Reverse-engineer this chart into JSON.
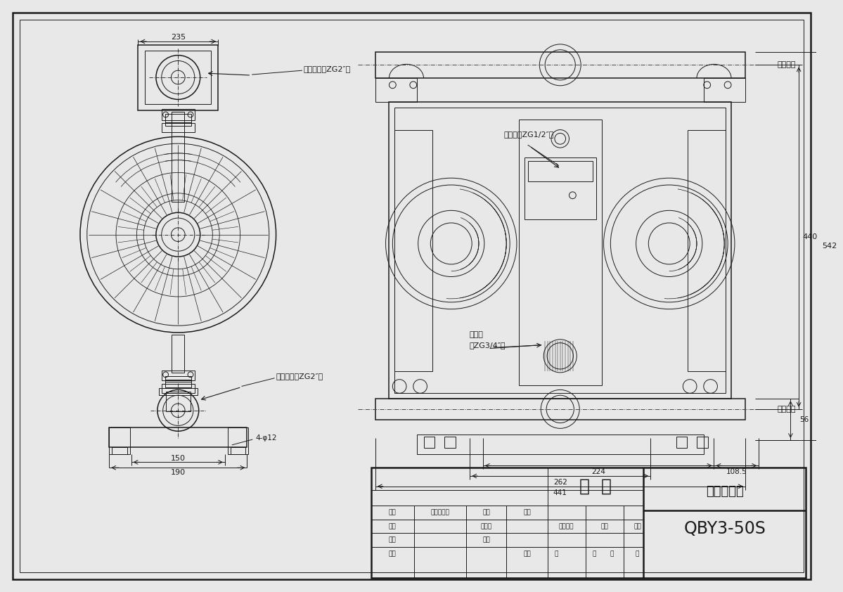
{
  "bg_color": "#e8e8e8",
  "line_color": "#1a1a1a",
  "dim_235": "235",
  "dim_150": "150",
  "dim_190": "190",
  "dim_4phi12": "4-φ12",
  "dim_440": "440",
  "dim_542": "542",
  "dim_56": "56",
  "dim_224": "224",
  "dim_262": "262",
  "dim_441": "441",
  "dim_108_5": "108.5",
  "label_outlet": "物料出口（ZG2″）",
  "label_inlet": "物料进口（ZG2″）",
  "label_air_inlet": "进气口（ZG1/2″）",
  "label_muffler1": "消声器",
  "label_muffler2": "（ZG3/4″）",
  "label_out_side": "（出口）",
  "label_in_side": "（进口）",
  "tb_material": "塑  料",
  "tb_install": "安装尺寸图",
  "tb_model": "QBY3-50S",
  "tb_biaoji": "标记",
  "tb_gengdoc": "更改文件号",
  "tb_qianzi": "鹾字",
  "tb_riqi": "日期",
  "tb_sheji": "设计",
  "tb_biaozhunhua": "标准化",
  "tb_tuyangbiaoji": "图样标记",
  "tb_zhongliang": "重量",
  "tb_bili": "比例",
  "tb_shenhe": "审核",
  "tb_pizhun": "批准",
  "tb_gongyi": "工艺",
  "tb_riqi2": "日期",
  "tb_gong": "共",
  "tb_ye": "页",
  "tb_di": "第",
  "tb_ye2": "页"
}
